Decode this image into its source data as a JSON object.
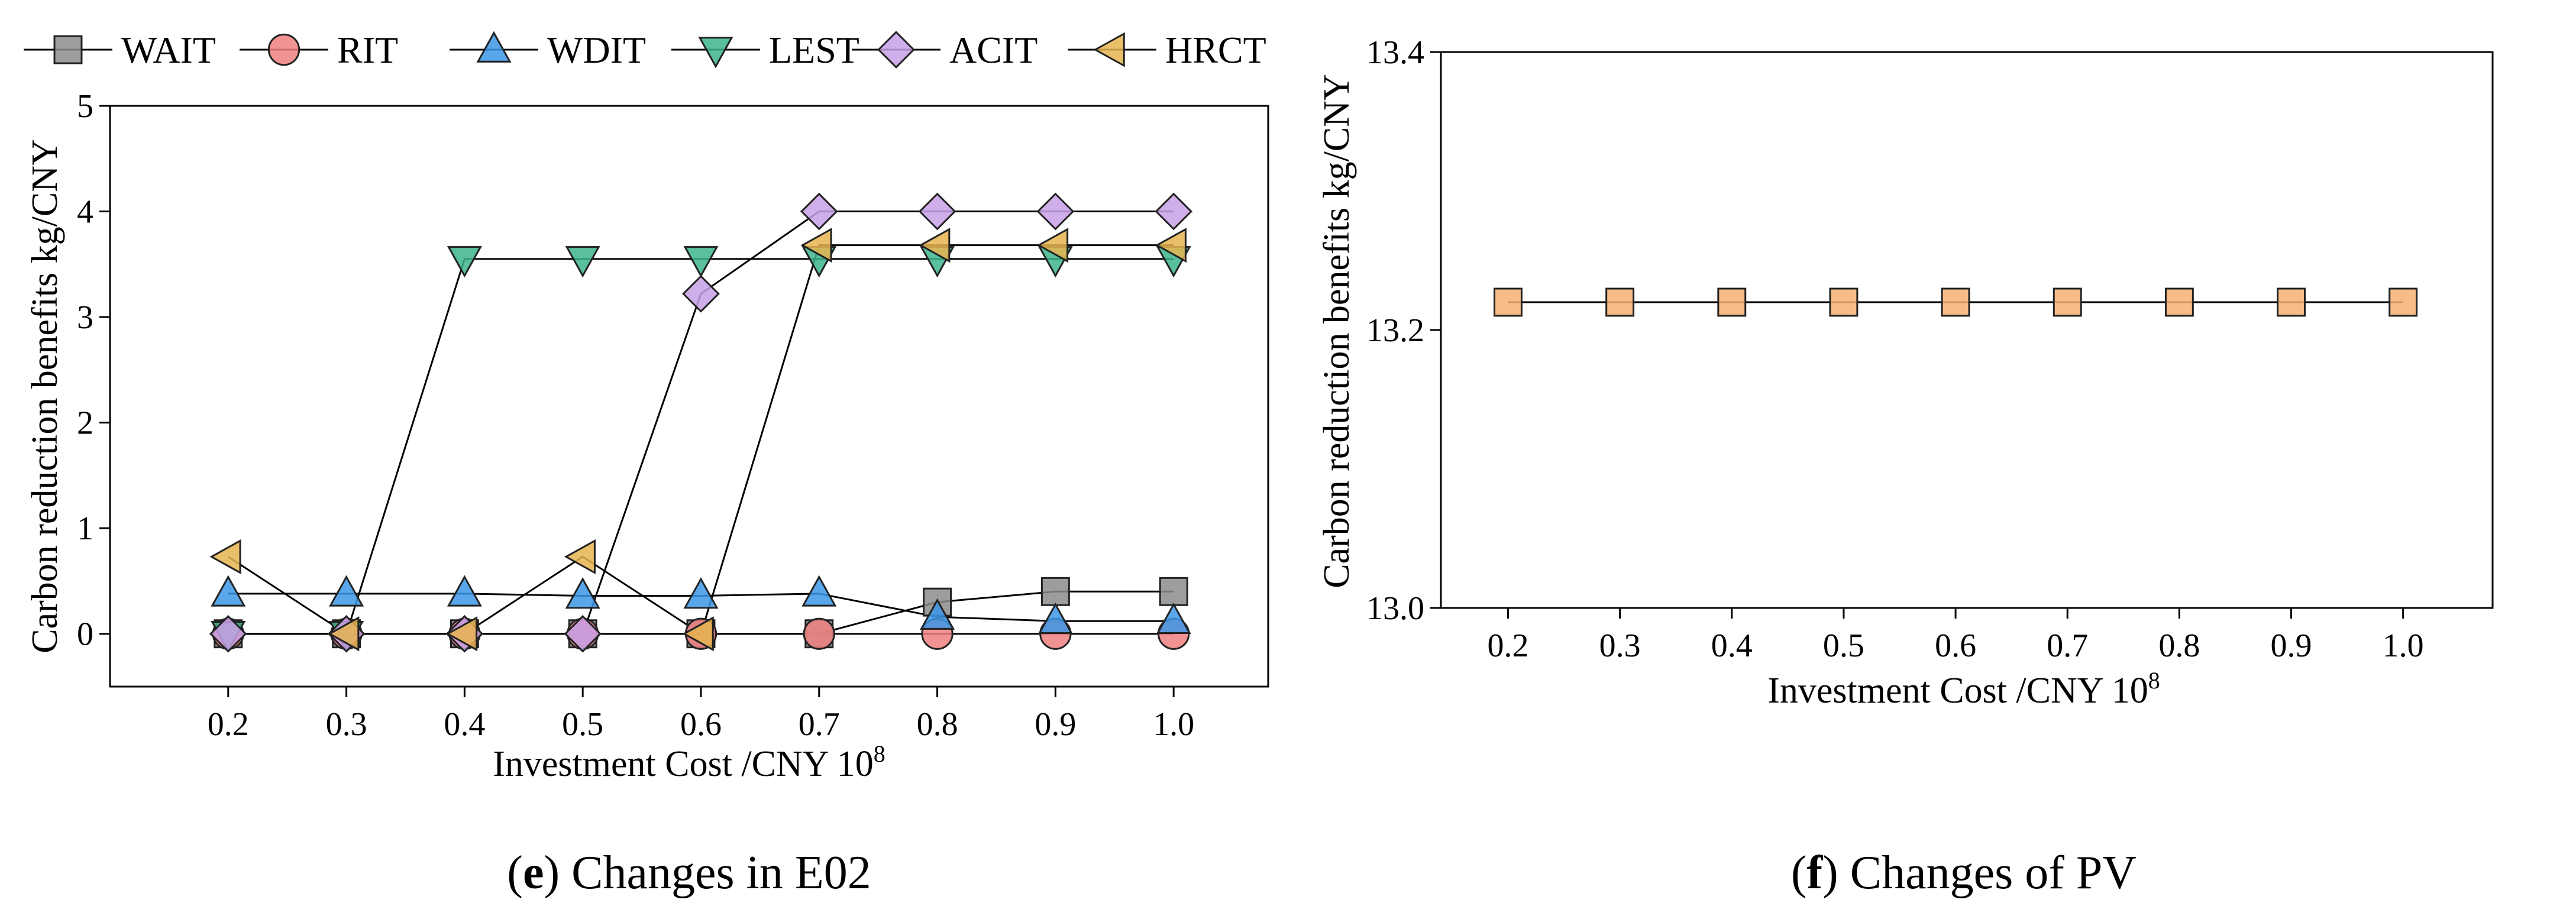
{
  "chart_data": [
    {
      "id": "e",
      "type": "line",
      "panel_label": "e",
      "caption_rest": " Changes in E02",
      "xlabel": "Investment Cost /CNY 10",
      "xlabel_sup": "8",
      "ylabel": "Carbon reduction benefits kg/CNY",
      "categories": [
        "0.2",
        "0.3",
        "0.4",
        "0.5",
        "0.6",
        "0.7",
        "0.8",
        "0.9",
        "1.0"
      ],
      "x": [
        0.2,
        0.3,
        0.4,
        0.5,
        0.6,
        0.7,
        0.8,
        0.9,
        1.0
      ],
      "xlim": [
        0.1,
        1.08
      ],
      "ylim": [
        -0.5,
        5
      ],
      "yticks": [
        "0",
        "1",
        "2",
        "3",
        "4",
        "5"
      ],
      "ytick_values": [
        0,
        1,
        2,
        3,
        4,
        5
      ],
      "legend_position": "top",
      "series": [
        {
          "name": "WAIT",
          "marker": "square",
          "color": "#8c8c8c",
          "values": [
            0,
            0,
            0,
            0,
            0,
            0,
            0.3,
            0.4,
            0.4
          ]
        },
        {
          "name": "RIT",
          "marker": "circle",
          "color": "#f08080",
          "values": [
            0,
            0,
            0,
            0,
            0,
            0,
            0,
            0,
            0
          ]
        },
        {
          "name": "WDIT",
          "marker": "triangle-up",
          "color": "#3c96e6",
          "values": [
            0.38,
            0.38,
            0.38,
            0.36,
            0.36,
            0.38,
            0.16,
            0.12,
            0.12
          ]
        },
        {
          "name": "LEST",
          "marker": "triangle-down",
          "color": "#3cb48c",
          "values": [
            0,
            0,
            3.55,
            3.55,
            3.55,
            3.55,
            3.55,
            3.55,
            3.55
          ]
        },
        {
          "name": "ACIT",
          "marker": "diamond",
          "color": "#c8a0e6",
          "values": [
            0,
            0,
            0,
            0,
            3.22,
            4,
            4,
            4,
            4
          ]
        },
        {
          "name": "HRCT",
          "marker": "triangle-left",
          "color": "#e6b450",
          "values": [
            0.73,
            0,
            0,
            0.73,
            0,
            3.68,
            3.68,
            3.68,
            3.68
          ]
        }
      ]
    },
    {
      "id": "f",
      "type": "line",
      "panel_label": "f",
      "caption_rest": " Changes of PV",
      "xlabel": "Investment Cost /CNY 10",
      "xlabel_sup": "8",
      "ylabel": "Carbon reduction benefits kg/CNY",
      "categories": [
        "0.2",
        "0.3",
        "0.4",
        "0.5",
        "0.6",
        "0.7",
        "0.8",
        "0.9",
        "1.0"
      ],
      "x": [
        0.2,
        0.3,
        0.4,
        0.5,
        0.6,
        0.7,
        0.8,
        0.9,
        1.0
      ],
      "xlim": [
        0.14,
        1.08
      ],
      "ylim": [
        13.0,
        13.4
      ],
      "yticks": [
        "13.0",
        "13.2",
        "13.4"
      ],
      "ytick_values": [
        13.0,
        13.2,
        13.4
      ],
      "series": [
        {
          "name": "PV",
          "marker": "square",
          "color": "#f5b273",
          "values": [
            13.22,
            13.22,
            13.22,
            13.22,
            13.22,
            13.22,
            13.22,
            13.22,
            13.22
          ]
        }
      ]
    }
  ]
}
